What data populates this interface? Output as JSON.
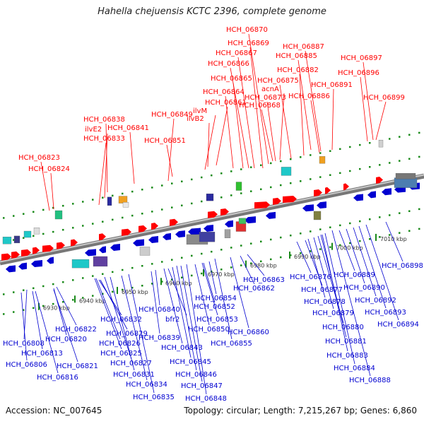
{
  "title": "Hahella chejuensis KCTC 2396, complete genome",
  "footer": {
    "accession": "Accession: NC_007645",
    "info": "Topology: circular; Length: 7,215,267 bp; Genes: 6,860"
  },
  "colors": {
    "forward": "#ff0000",
    "reverse": "#0000d0",
    "backbone": "#8f8f8f",
    "tick": "#1a8a1a",
    "ticklabel": "#333333"
  },
  "kbp_ticks": [
    "6930 kbp",
    "6940 kbp",
    "6950 kbp",
    "6960 kbp",
    "6970 kbp",
    "6980 kbp",
    "6990 kbp",
    "7000 kbp",
    "7010 kbp"
  ],
  "top_labels": [
    "HCH_06823",
    "HCH_06824",
    "HCH_06838",
    "ilvE2",
    "HCH_06833",
    "HCH_06841",
    "HCH_06849",
    "HCH_06851",
    "ilvM",
    "ilvB2",
    "HCH_06861",
    "HCH_06864",
    "HCH_06865",
    "HCH_06866",
    "HCH_06867",
    "HCH_06869",
    "HCH_06870",
    "HCH_06868",
    "HCH_06873",
    "acnA",
    "HCH_06875",
    "HCH_06882",
    "HCH_06885",
    "HCH_06887",
    "HCH_06886",
    "HCH_06891",
    "HCH_06896",
    "HCH_06897",
    "HCH_06899"
  ],
  "bottom_labels": [
    "HCH_06808",
    "HCH_06813",
    "HCH_06806",
    "HCH_06822",
    "HCH_06820",
    "HCH_06821",
    "HCH_06816",
    "HCH_06832",
    "HCH_06829",
    "HCH_06826",
    "HCH_06825",
    "HCH_06827",
    "HCH_06831",
    "HCH_06834",
    "HCH_06835",
    "HCH_06840",
    "bfr2",
    "HCH_06839",
    "HCH_06843",
    "HCH_06845",
    "HCH_06846",
    "HCH_06847",
    "HCH_06848",
    "HCH_06854",
    "HCH_06852",
    "HCH_06853",
    "HCH_06850",
    "HCH_06855",
    "HCH_06860",
    "HCH_06863",
    "HCH_06862",
    "HCH_06876",
    "HCH_06877",
    "HCH_06878",
    "HCH_06879",
    "HCH_06880",
    "HCH_06881",
    "HCH_06883",
    "HCH_06884",
    "HCH_06888",
    "HCH_06889",
    "HCH_06890",
    "HCH_06892",
    "HCH_06893",
    "HCH_06894",
    "HCH_06898"
  ]
}
